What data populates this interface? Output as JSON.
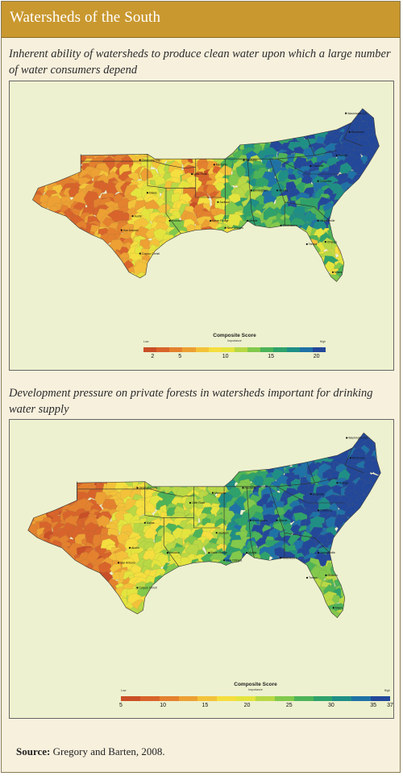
{
  "header": {
    "title": "Watersheds of the South"
  },
  "panels": [
    {
      "caption": "Inherent ability of watersheds to produce clean water upon which a large number of water consumers depend",
      "legend": {
        "title": "Composite Score",
        "subtitle": "Importance",
        "low_label": "Low",
        "high_label": "High",
        "ticks": [
          "2",
          "5",
          "10",
          "15",
          "20"
        ],
        "tick_values": [
          2,
          5,
          10,
          15,
          20
        ],
        "range": [
          1,
          21
        ]
      },
      "cities": [
        "Washington DC",
        "Richmond",
        "Raleigh",
        "Charlotte",
        "Columbia",
        "Atlanta",
        "Birmingham",
        "Nashville",
        "Memphis",
        "Little Rock",
        "Jackson",
        "Oklahoma City",
        "Dallas",
        "Austin",
        "Houston",
        "San Antonio",
        "Corpus Christi",
        "Baton Rouge",
        "New Orleans",
        "Mobile",
        "Tallahassee",
        "Jacksonville",
        "Orlando",
        "Tampa",
        "Miami"
      ]
    },
    {
      "caption": "Development pressure on private forests in watersheds important for drinking water supply",
      "legend": {
        "title": "Composite Score",
        "subtitle": "Importance",
        "low_label": "Low",
        "high_label": "High",
        "ticks": [
          "5",
          "10",
          "15",
          "20",
          "25",
          "30",
          "35",
          "37"
        ],
        "tick_values": [
          5,
          10,
          15,
          20,
          25,
          30,
          35,
          37
        ],
        "range": [
          5,
          37
        ]
      },
      "cities": [
        "Washington DC",
        "Richmond",
        "Raleigh",
        "Charlotte",
        "Columbia",
        "Atlanta",
        "Birmingham",
        "Nashville",
        "Memphis",
        "Little Rock",
        "Jackson",
        "Oklahoma City",
        "Dallas",
        "Austin",
        "Houston",
        "San Antonio",
        "Corpus Christi",
        "Baton Rouge",
        "New Orleans",
        "Mobile",
        "Tallahassee",
        "Jacksonville",
        "Orlando",
        "Tampa",
        "Miami"
      ]
    }
  ],
  "source": {
    "label": "Source:",
    "text": " Gregory and Barten, 2008."
  },
  "colors": {
    "scale": [
      "#c94f27",
      "#d8642b",
      "#e4812e",
      "#eda033",
      "#f3c23a",
      "#f5de3f",
      "#e4e43f",
      "#b8d845",
      "#82c94c",
      "#4db358",
      "#2fa26b",
      "#1f8f86",
      "#1f72a6",
      "#23489a"
    ],
    "header": "#c9982f",
    "panel_bg": "#f7f0dd",
    "ocean": "#ffffff",
    "land_outside": "#eef1cf"
  }
}
